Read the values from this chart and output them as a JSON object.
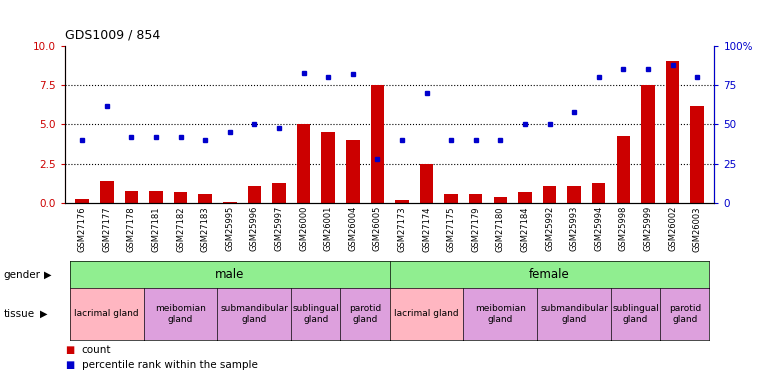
{
  "title": "GDS1009 / 854",
  "samples": [
    "GSM27176",
    "GSM27177",
    "GSM27178",
    "GSM27181",
    "GSM27182",
    "GSM27183",
    "GSM25995",
    "GSM25996",
    "GSM25997",
    "GSM26000",
    "GSM26001",
    "GSM26004",
    "GSM26005",
    "GSM27173",
    "GSM27174",
    "GSM27175",
    "GSM27179",
    "GSM27180",
    "GSM27184",
    "GSM25992",
    "GSM25993",
    "GSM25994",
    "GSM25998",
    "GSM25999",
    "GSM26002",
    "GSM26003"
  ],
  "count": [
    0.3,
    1.4,
    0.8,
    0.8,
    0.7,
    0.6,
    0.05,
    1.1,
    1.3,
    5.0,
    4.5,
    4.0,
    7.5,
    0.2,
    2.5,
    0.6,
    0.6,
    0.4,
    0.7,
    1.1,
    1.1,
    1.3,
    4.3,
    7.5,
    9.0,
    6.2
  ],
  "percentile": [
    40,
    62,
    42,
    42,
    42,
    40,
    45,
    50,
    48,
    83,
    80,
    82,
    28,
    40,
    70,
    40,
    40,
    40,
    50,
    50,
    58,
    80,
    85,
    85,
    88,
    80
  ],
  "bar_color": "#cc0000",
  "dot_color": "#0000cc",
  "ylim_left": [
    0,
    10
  ],
  "ylim_right": [
    0,
    100
  ],
  "yticks_left": [
    0,
    2.5,
    5.0,
    7.5,
    10
  ],
  "yticks_right": [
    0,
    25,
    50,
    75,
    100
  ],
  "gender_groups": [
    {
      "label": "male",
      "start": 0,
      "end": 12,
      "color": "#90ee90"
    },
    {
      "label": "female",
      "start": 13,
      "end": 25,
      "color": "#90ee90"
    }
  ],
  "tissue_groups": [
    {
      "label": "lacrimal gland",
      "start": 0,
      "end": 2,
      "color": "#ffb6c1"
    },
    {
      "label": "meibomian\ngland",
      "start": 3,
      "end": 5,
      "color": "#dda0dd"
    },
    {
      "label": "submandibular\ngland",
      "start": 6,
      "end": 8,
      "color": "#dda0dd"
    },
    {
      "label": "sublingual\ngland",
      "start": 9,
      "end": 10,
      "color": "#dda0dd"
    },
    {
      "label": "parotid\ngland",
      "start": 11,
      "end": 12,
      "color": "#dda0dd"
    },
    {
      "label": "lacrimal gland",
      "start": 13,
      "end": 15,
      "color": "#ffb6c1"
    },
    {
      "label": "meibomian\ngland",
      "start": 16,
      "end": 18,
      "color": "#dda0dd"
    },
    {
      "label": "submandibular\ngland",
      "start": 19,
      "end": 21,
      "color": "#dda0dd"
    },
    {
      "label": "sublingual\ngland",
      "start": 22,
      "end": 23,
      "color": "#dda0dd"
    },
    {
      "label": "parotid\ngland",
      "start": 24,
      "end": 25,
      "color": "#dda0dd"
    }
  ]
}
